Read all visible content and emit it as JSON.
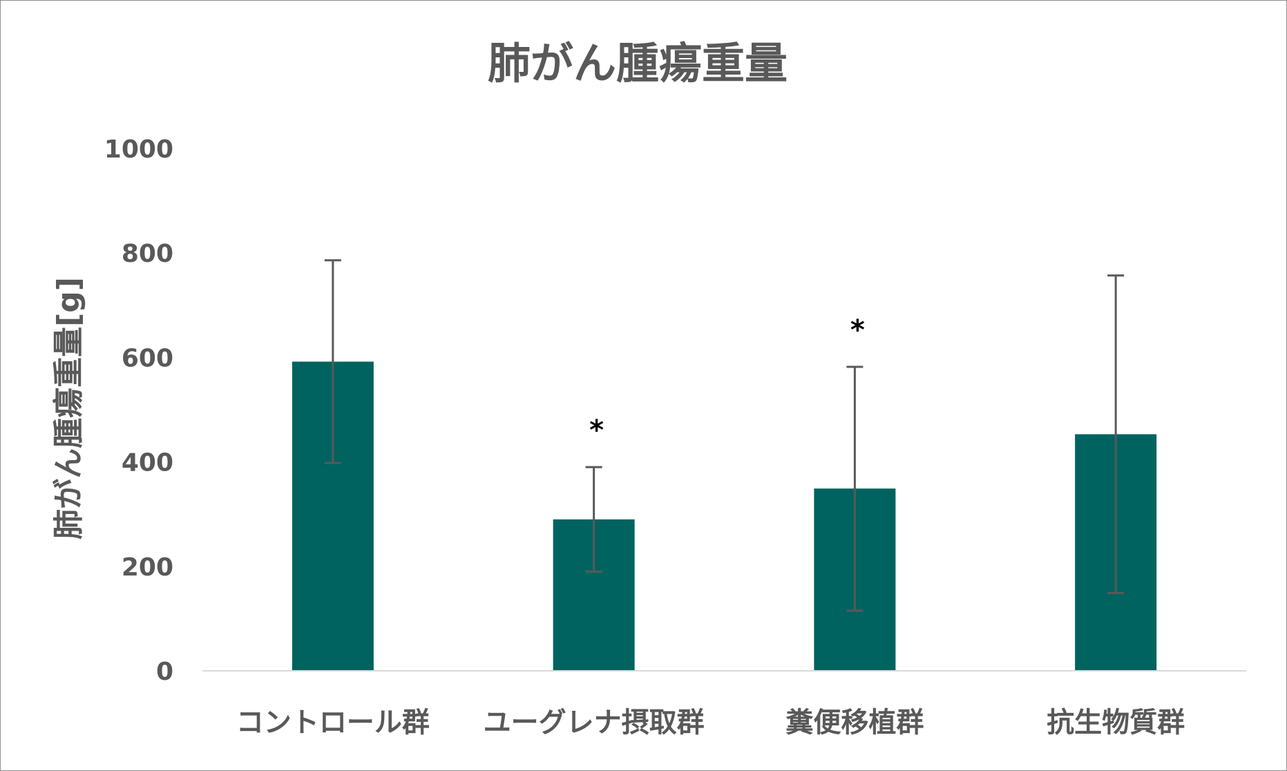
{
  "chart_data": {
    "type": "bar",
    "title": "肺がん腫瘍重量",
    "ylabel": "肺がん腫瘍重量[g]",
    "xlabel": "",
    "ylim": [
      0,
      1000
    ],
    "yticks": [
      "0",
      "200",
      "400",
      "600",
      "800",
      "1000"
    ],
    "yticks_values": [
      0,
      200,
      400,
      600,
      800,
      1000
    ],
    "categories": [
      "コントロール群",
      "ユーグレナ摂取群",
      "糞便移植群",
      "抗生物質群"
    ],
    "values": [
      592,
      290,
      349,
      453
    ],
    "error_low": [
      398,
      190,
      115,
      149
    ],
    "error_high": [
      786,
      390,
      582,
      757
    ],
    "significance": [
      "",
      "*",
      "*",
      ""
    ],
    "bar_color": "#00635f",
    "error_color": "#595959",
    "grid": false,
    "legend": "none"
  }
}
